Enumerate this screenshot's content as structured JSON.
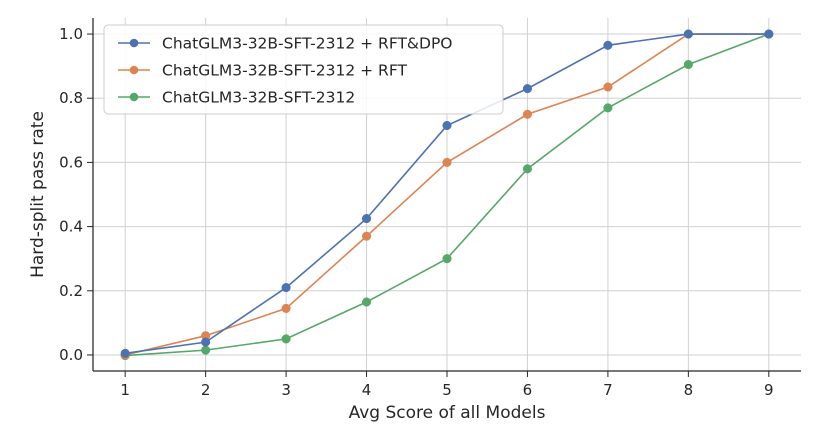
{
  "chart_data": {
    "type": "line",
    "xlabel": "Avg Score of all Models",
    "ylabel": "Hard-split pass rate",
    "x": [
      1,
      2,
      3,
      4,
      5,
      6,
      7,
      8,
      9
    ],
    "xlim": [
      0.6,
      9.4
    ],
    "ylim": [
      -0.05,
      1.05
    ],
    "xticks": [
      "1",
      "2",
      "3",
      "4",
      "5",
      "6",
      "7",
      "8",
      "9"
    ],
    "yticks": [
      "0.0",
      "0.2",
      "0.4",
      "0.6",
      "0.8",
      "1.0"
    ],
    "grid": true,
    "legend_position": "top-left",
    "series": [
      {
        "name": "ChatGLM3-32B-SFT-2312 + RFT&DPO",
        "color": "#4c72b0",
        "values": [
          0.005,
          0.04,
          0.21,
          0.425,
          0.715,
          0.83,
          0.965,
          1.0,
          1.0
        ]
      },
      {
        "name": "ChatGLM3-32B-SFT-2312 + RFT",
        "color": "#dd8452",
        "values": [
          0.0,
          0.06,
          0.145,
          0.37,
          0.6,
          0.75,
          0.835,
          1.0,
          1.0
        ]
      },
      {
        "name": "ChatGLM3-32B-SFT-2312",
        "color": "#55a868",
        "values": [
          -0.002,
          0.015,
          0.05,
          0.165,
          0.3,
          0.58,
          0.77,
          0.905,
          1.0
        ]
      }
    ]
  }
}
